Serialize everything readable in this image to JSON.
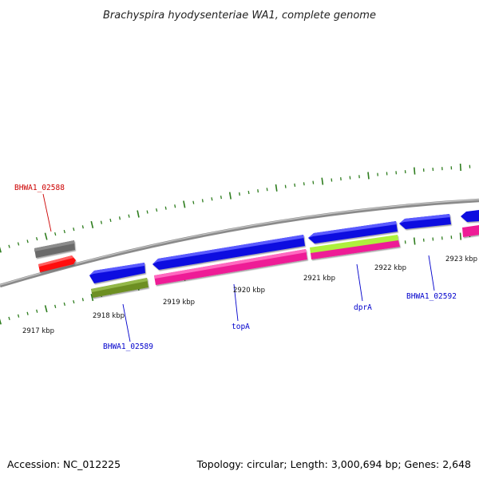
{
  "title": "Brachyspira hyodysenteriae WA1, complete genome",
  "footer": {
    "accession": "Accession: NC_012225",
    "summary": "Topology: circular; Length: 3,000,694 bp; Genes: 2,648"
  },
  "scale_labels": [
    "2917 kbp",
    "2918 kbp",
    "2919 kbp",
    "2920 kbp",
    "2921 kbp",
    "2922 kbp",
    "2923 kbp"
  ],
  "gene_labels": [
    {
      "text": "BHWA1_02588",
      "color": "#cc0000"
    },
    {
      "text": "BHWA1_02589",
      "color": "#0000cc"
    },
    {
      "text": "topA",
      "color": "#0000cc"
    },
    {
      "text": "dprA",
      "color": "#0000cc"
    },
    {
      "text": "BHWA1_02592",
      "color": "#0000cc"
    }
  ],
  "colors": {
    "backbone": "#8a8a8a",
    "tick": "#2e7d1e",
    "cds_blue": "#1010e0",
    "pink": "#ee1c96",
    "red": "#ff1010",
    "gray": "#6a6a6a",
    "olive": "#6d8f24",
    "lime": "#aef03c"
  }
}
